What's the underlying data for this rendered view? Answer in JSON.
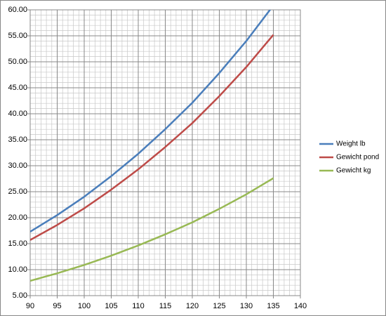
{
  "chart_data": {
    "type": "line",
    "x": [
      90,
      95,
      100,
      105,
      110,
      115,
      120,
      125,
      130,
      135
    ],
    "series": [
      {
        "name": "Weight lb",
        "color": "#4a7ebb",
        "values": [
          17.31,
          20.5,
          24.03,
          28.0,
          32.3,
          37.04,
          42.11,
          47.84,
          54.01,
          60.85
        ]
      },
      {
        "name": "Gewicht pond",
        "color": "#be4b48",
        "values": [
          15.7,
          18.6,
          21.8,
          25.4,
          29.3,
          33.6,
          38.2,
          43.4,
          49.0,
          55.2
        ]
      },
      {
        "name": "Gewicht kg",
        "color": "#98b954",
        "values": [
          7.85,
          9.3,
          10.9,
          12.7,
          14.65,
          16.8,
          19.1,
          21.7,
          24.5,
          27.6
        ]
      }
    ],
    "xlim": [
      90,
      140
    ],
    "xticks": [
      90,
      95,
      100,
      105,
      110,
      115,
      120,
      125,
      130,
      135,
      140
    ],
    "ylim": [
      5,
      60
    ],
    "yticks": [
      {
        "value": 5,
        "label": "5.00"
      },
      {
        "value": 10,
        "label": "10.00"
      },
      {
        "value": 15,
        "label": "15.00"
      },
      {
        "value": 20,
        "label": "20.00"
      },
      {
        "value": 25,
        "label": "25.00"
      },
      {
        "value": 30,
        "label": "30.00"
      },
      {
        "value": 35,
        "label": "35.00"
      },
      {
        "value": 40,
        "label": "40.00"
      },
      {
        "value": 45,
        "label": "45.00"
      },
      {
        "value": 50,
        "label": "50.00"
      },
      {
        "value": 55,
        "label": "55.00"
      },
      {
        "value": 60,
        "label": "60.00"
      }
    ],
    "grid": true,
    "minor_xstep": 1,
    "minor_ystep": 1,
    "legend": "right"
  }
}
